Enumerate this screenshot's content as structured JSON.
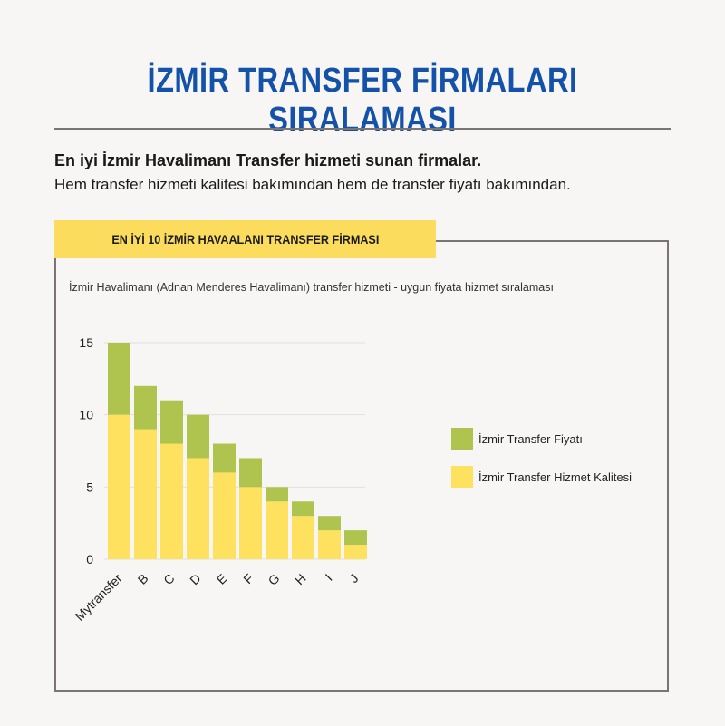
{
  "header": {
    "title": "İZMİR TRANSFER FİRMALARI SIRALAMASI",
    "lead": "En iyi İzmir Havalimanı Transfer hizmeti sunan firmalar.",
    "sub": "Hem transfer hizmeti kalitesi bakımından hem de transfer fiyatı bakımından."
  },
  "panel": {
    "banner": "EN İYİ 10 İZMİR HAVAALANI TRANSFER FİRMASI",
    "caption": "İzmir Havalimanı (Adnan Menderes Havalimanı) transfer hizmeti - uygun fiyata hizmet sıralaması"
  },
  "colors": {
    "title": "#1352a8",
    "banner": "#fcdc5d",
    "series_quality": "#fde15f",
    "series_price": "#afc34f",
    "grid": "#e2e0dd"
  },
  "chart_data": {
    "type": "bar",
    "stacked": true,
    "categories": [
      "Mytransfer",
      "B",
      "C",
      "D",
      "E",
      "F",
      "G",
      "H",
      "I",
      "J"
    ],
    "series": [
      {
        "name": "İzmir Transfer Hizmet Kalitesi",
        "color": "#fde15f",
        "values": [
          10,
          9,
          8,
          7,
          6,
          5,
          4,
          3,
          2,
          1
        ]
      },
      {
        "name": "İzmir Transfer Fiyatı",
        "color": "#afc34f",
        "values": [
          5,
          3,
          3,
          3,
          2,
          2,
          1,
          1,
          1,
          1
        ]
      }
    ],
    "y_ticks": [
      "0",
      "5",
      "10",
      "15"
    ],
    "ylim": [
      0,
      15
    ],
    "grid": true,
    "legend": [
      "İzmir Transfer Fiyatı",
      "İzmir Transfer Hizmet Kalitesi"
    ],
    "legend_position": "right"
  }
}
